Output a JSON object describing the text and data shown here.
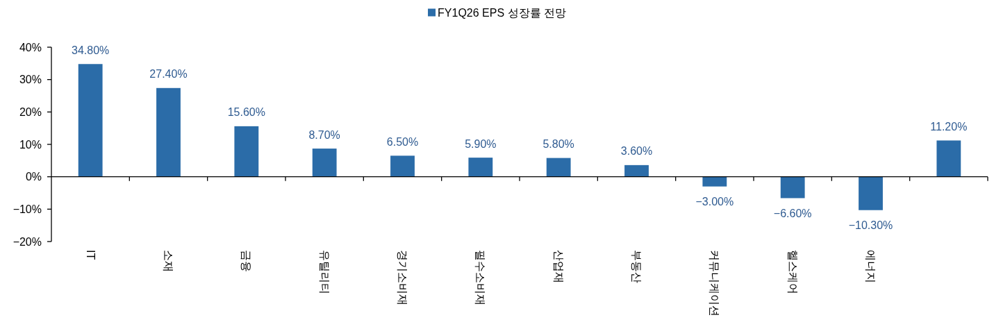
{
  "chart_data": {
    "type": "bar",
    "categories": [
      "IT",
      "소재",
      "금융",
      "유틸리티",
      "경기소비재",
      "필수소비재",
      "산업재",
      "부동산",
      "커뮤니케이션",
      "헬스케어",
      "에너지",
      null
    ],
    "series": [
      {
        "name": "FY1Q26 EPS 성장률 전망",
        "color": "#2b6ca8",
        "values": [
          34.8,
          27.4,
          15.6,
          8.7,
          6.5,
          5.9,
          5.8,
          3.6,
          -3.0,
          -6.6,
          -10.3,
          11.2
        ],
        "value_labels": [
          "34.80%",
          "27.40%",
          "15.60%",
          "8.70%",
          "6.50%",
          "5.90%",
          "5.80%",
          "3.60%",
          "−3.00%",
          "−6.60%",
          "−10.30%",
          "11.20%"
        ]
      }
    ],
    "ylim": [
      -20,
      40
    ],
    "yticks": [
      {
        "value": -20,
        "label": "−20%"
      },
      {
        "value": -10,
        "label": "−10%"
      },
      {
        "value": 0,
        "label": "0%"
      },
      {
        "value": 10,
        "label": "10%"
      },
      {
        "value": 20,
        "label": "20%"
      },
      {
        "value": 30,
        "label": "30%"
      },
      {
        "value": 40,
        "label": "40%"
      }
    ],
    "legend": "top"
  }
}
